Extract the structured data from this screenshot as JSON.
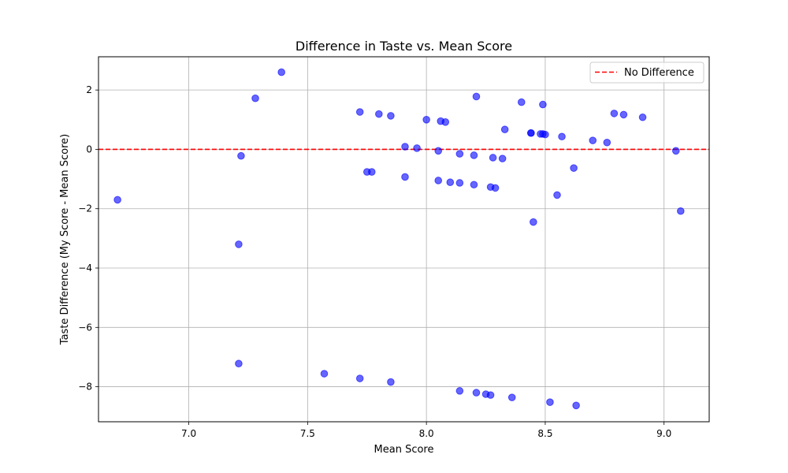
{
  "chart_data": {
    "type": "scatter",
    "title": "Difference in Taste vs. Mean Score",
    "xlabel": "Mean Score",
    "ylabel": "Taste Difference (My Score - Mean Score)",
    "xlim": [
      6.62,
      9.19
    ],
    "ylim": [
      -9.18,
      3.12
    ],
    "x_ticks": [
      7.0,
      7.5,
      8.0,
      8.5,
      9.0
    ],
    "x_tick_labels": [
      "7.0",
      "7.5",
      "8.0",
      "8.5",
      "9.0"
    ],
    "y_ticks": [
      2,
      0,
      -2,
      -4,
      -6,
      -8
    ],
    "y_tick_labels": [
      "2",
      "0",
      "−2",
      "−4",
      "−6",
      "−8"
    ],
    "grid": true,
    "legend_position": "top-right",
    "reference_line": {
      "y": 0,
      "label": "No Difference",
      "color": "#ff0000",
      "style": "dashed"
    },
    "marker_color": "#0000ff",
    "points": [
      {
        "x": 6.7,
        "y": -1.7
      },
      {
        "x": 7.21,
        "y": -7.22
      },
      {
        "x": 7.21,
        "y": -3.2
      },
      {
        "x": 7.22,
        "y": -0.22
      },
      {
        "x": 7.28,
        "y": 1.72
      },
      {
        "x": 7.39,
        "y": 2.6
      },
      {
        "x": 7.57,
        "y": -7.56
      },
      {
        "x": 7.72,
        "y": 1.26
      },
      {
        "x": 7.72,
        "y": -7.72
      },
      {
        "x": 7.75,
        "y": -0.76
      },
      {
        "x": 7.77,
        "y": -0.76
      },
      {
        "x": 7.8,
        "y": 1.19
      },
      {
        "x": 7.85,
        "y": 1.13
      },
      {
        "x": 7.85,
        "y": -7.84
      },
      {
        "x": 7.91,
        "y": 0.09
      },
      {
        "x": 7.91,
        "y": -0.93
      },
      {
        "x": 7.96,
        "y": 0.04
      },
      {
        "x": 8.0,
        "y": 1.0
      },
      {
        "x": 8.05,
        "y": -0.05
      },
      {
        "x": 8.05,
        "y": -1.05
      },
      {
        "x": 8.06,
        "y": 0.95
      },
      {
        "x": 8.08,
        "y": 0.92
      },
      {
        "x": 8.1,
        "y": -1.11
      },
      {
        "x": 8.14,
        "y": -0.15
      },
      {
        "x": 8.14,
        "y": -1.13
      },
      {
        "x": 8.14,
        "y": -8.14
      },
      {
        "x": 8.2,
        "y": -0.2
      },
      {
        "x": 8.2,
        "y": -1.19
      },
      {
        "x": 8.21,
        "y": 1.78
      },
      {
        "x": 8.21,
        "y": -8.2
      },
      {
        "x": 8.25,
        "y": -8.25
      },
      {
        "x": 8.27,
        "y": -1.27
      },
      {
        "x": 8.27,
        "y": -8.28
      },
      {
        "x": 8.28,
        "y": -0.28
      },
      {
        "x": 8.29,
        "y": -1.3
      },
      {
        "x": 8.32,
        "y": -0.31
      },
      {
        "x": 8.33,
        "y": 0.67
      },
      {
        "x": 8.36,
        "y": -8.36
      },
      {
        "x": 8.4,
        "y": 1.59
      },
      {
        "x": 8.44,
        "y": 0.55
      },
      {
        "x": 8.44,
        "y": 0.55
      },
      {
        "x": 8.45,
        "y": -2.45
      },
      {
        "x": 8.48,
        "y": 0.52
      },
      {
        "x": 8.49,
        "y": 0.52
      },
      {
        "x": 8.49,
        "y": 1.51
      },
      {
        "x": 8.5,
        "y": 0.5
      },
      {
        "x": 8.52,
        "y": -8.52
      },
      {
        "x": 8.55,
        "y": -1.54
      },
      {
        "x": 8.57,
        "y": 0.43
      },
      {
        "x": 8.62,
        "y": -0.63
      },
      {
        "x": 8.63,
        "y": -8.63
      },
      {
        "x": 8.7,
        "y": 0.3
      },
      {
        "x": 8.76,
        "y": 0.23
      },
      {
        "x": 8.79,
        "y": 1.21
      },
      {
        "x": 8.83,
        "y": 1.17
      },
      {
        "x": 8.91,
        "y": 1.08
      },
      {
        "x": 9.05,
        "y": -0.05
      },
      {
        "x": 9.07,
        "y": -2.08
      }
    ]
  }
}
